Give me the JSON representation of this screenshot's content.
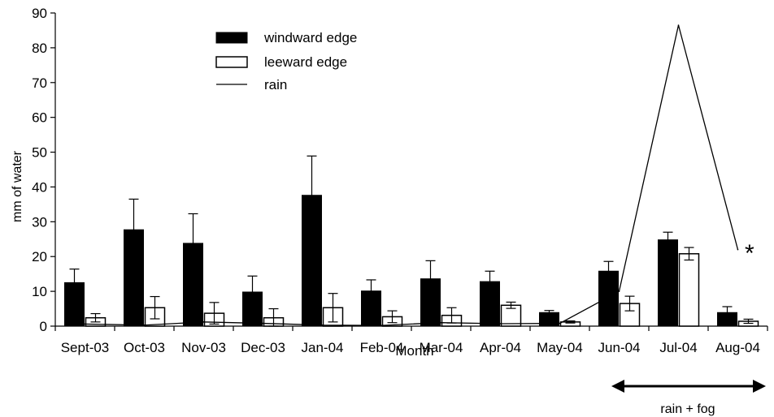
{
  "chart_data": {
    "type": "bar",
    "title": "",
    "xlabel": "Month",
    "ylabel": "mm of water",
    "ylim": [
      0,
      90
    ],
    "yticks": [
      0,
      10,
      20,
      30,
      40,
      50,
      60,
      70,
      80,
      90
    ],
    "grid": false,
    "legend_position": "top-left",
    "categories": [
      "Sept-03",
      "Oct-03",
      "Nov-03",
      "Dec-03",
      "Jan-04",
      "Feb-04",
      "Mar-04",
      "Apr-04",
      "May-04",
      "Jun-04",
      "Jul-04",
      "Aug-04"
    ],
    "series": [
      {
        "name": "windward edge",
        "type": "bar",
        "color": "#000000",
        "values": [
          12.5,
          27.7,
          23.8,
          9.8,
          37.6,
          10.1,
          13.6,
          12.8,
          3.9,
          15.8,
          24.8,
          3.9
        ],
        "errors": [
          3.9,
          8.8,
          8.5,
          4.6,
          11.3,
          3.2,
          5.2,
          3.0,
          0.6,
          2.8,
          2.2,
          1.7
        ]
      },
      {
        "name": "leeward edge",
        "type": "bar",
        "color": "#ffffff",
        "values": [
          2.4,
          5.3,
          3.7,
          2.4,
          5.3,
          2.7,
          3.1,
          6.0,
          1.2,
          6.5,
          20.8,
          1.4
        ],
        "errors": [
          1.2,
          3.2,
          3.1,
          2.6,
          4.1,
          1.7,
          2.2,
          0.9,
          0.3,
          2.1,
          1.8,
          0.6
        ]
      },
      {
        "name": "rain",
        "type": "line",
        "color": "#000000",
        "values": [
          0.6,
          0.3,
          1.2,
          0.8,
          0.3,
          0.2,
          1.0,
          0.7,
          0.8,
          10.0,
          86.5,
          22.0
        ]
      }
    ],
    "annotations": {
      "asterisk": "*",
      "range_label": "rain + fog"
    }
  }
}
